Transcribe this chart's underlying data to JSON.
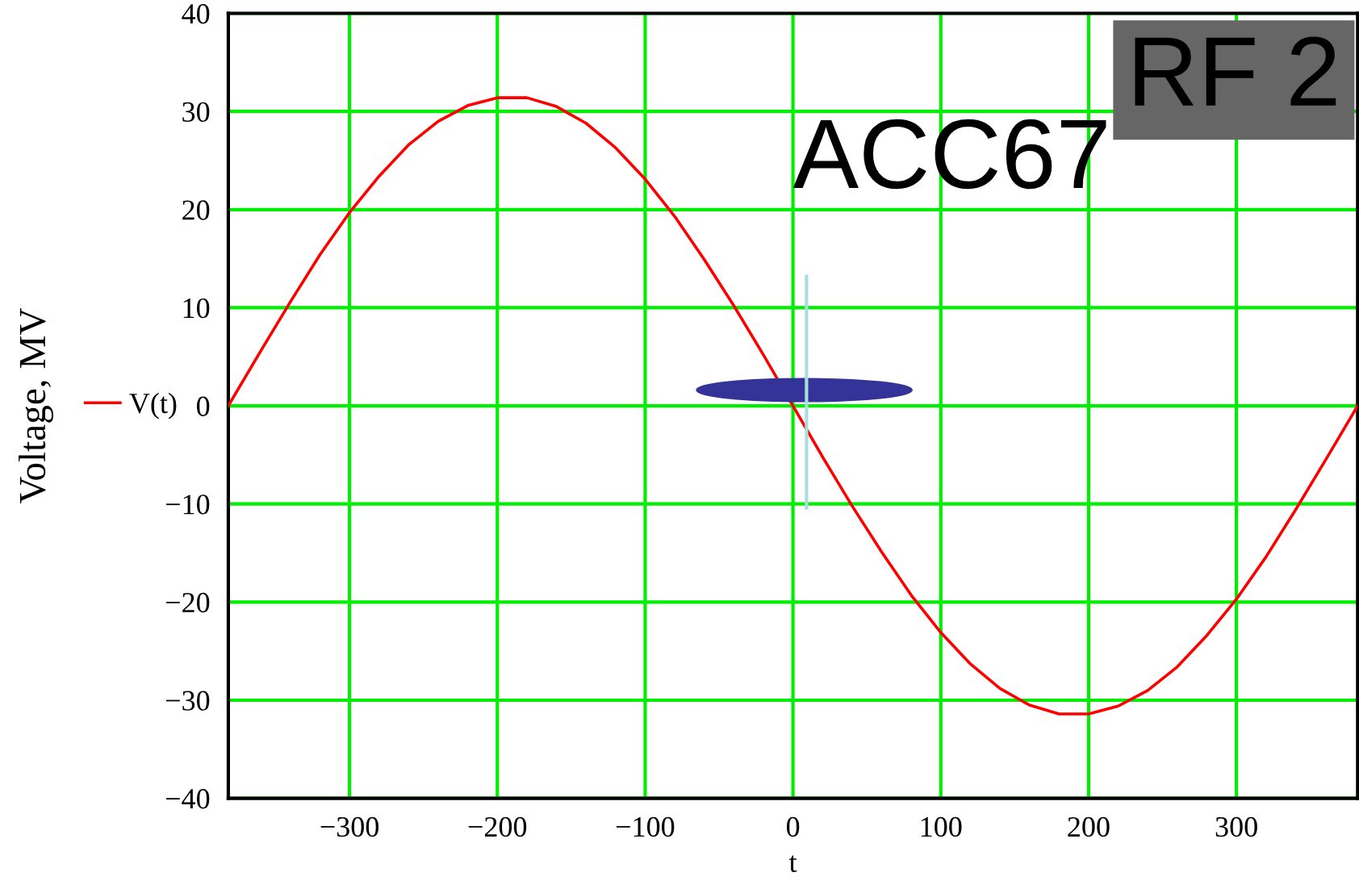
{
  "chart_data": {
    "type": "line",
    "xlabel": "t",
    "ylabel": "Voltage, MV",
    "annotations": [
      "ACC67",
      "RF 2"
    ],
    "x": [
      -382,
      -360,
      -340,
      -320,
      -300,
      -280,
      -260,
      -240,
      -220,
      -200,
      -180,
      -160,
      -140,
      -120,
      -100,
      -80,
      -60,
      -40,
      -20,
      0,
      20,
      40,
      60,
      80,
      100,
      120,
      140,
      160,
      180,
      200,
      220,
      240,
      260,
      280,
      300,
      320,
      340,
      360,
      382
    ],
    "series": [
      {
        "name": "V(t)",
        "color": "#ff0000",
        "values": [
          0,
          5.6,
          10.6,
          15.4,
          19.7,
          23.4,
          26.6,
          29.0,
          30.6,
          31.4,
          31.4,
          30.5,
          28.8,
          26.3,
          23.1,
          19.3,
          14.9,
          10.2,
          5.2,
          0,
          -5.2,
          -10.2,
          -14.9,
          -19.3,
          -23.1,
          -26.3,
          -28.8,
          -30.5,
          -31.4,
          -31.4,
          -30.6,
          -29.0,
          -26.6,
          -23.4,
          -19.7,
          -15.4,
          -10.6,
          -5.6,
          0
        ]
      }
    ],
    "xlim": [
      -382,
      382
    ],
    "xticks": [
      {
        "value": -300,
        "label": "−300"
      },
      {
        "value": -200,
        "label": "−200"
      },
      {
        "value": -100,
        "label": "−100"
      },
      0,
      100,
      200,
      300
    ],
    "ylim": [
      -40,
      40
    ],
    "yticks": [
      {
        "value": -40,
        "label": "−40"
      },
      {
        "value": -30,
        "label": "−30"
      },
      {
        "value": -20,
        "label": "−20"
      },
      {
        "value": -10,
        "label": "−10"
      },
      0,
      10,
      20,
      30,
      40
    ],
    "grid": true,
    "legend": "left",
    "marker": "none",
    "line_style": "solid"
  }
}
